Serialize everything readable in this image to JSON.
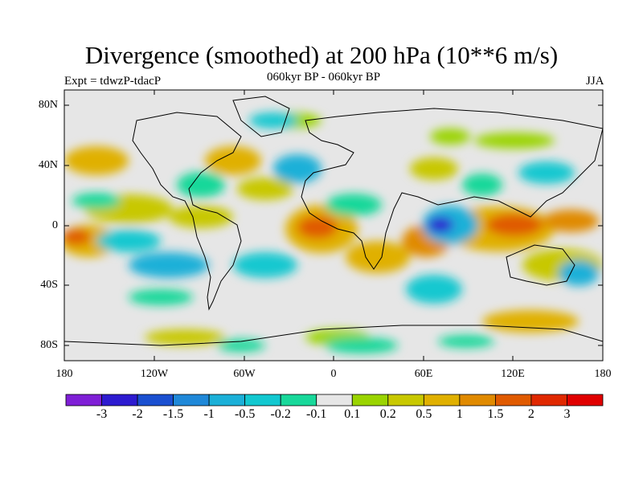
{
  "title": "Divergence (smoothed) at 200 hPa (10**6 m/s)",
  "expt": "Expt = tdwzP-tdacP",
  "period": "060kyr BP - 060kyr BP",
  "season": "JJA",
  "lat_labels": [
    "80N",
    "40N",
    "0",
    "40S",
    "80S"
  ],
  "lon_labels": [
    "180",
    "120W",
    "60W",
    "0",
    "60E",
    "120E",
    "180"
  ],
  "colorbar": {
    "labels": [
      "-3",
      "-2",
      "-1.5",
      "-1",
      "-0.5",
      "-0.2",
      "-0.1",
      "0.1",
      "0.2",
      "0.5",
      "1",
      "1.5",
      "2",
      "3"
    ],
    "colors": [
      "#7f1fd6",
      "#2d1bd0",
      "#1a4fd0",
      "#1f88d8",
      "#1bb0d8",
      "#12c8d0",
      "#18d89a",
      "#e6e6e6",
      "#9ad400",
      "#c8c800",
      "#e0b000",
      "#e08a00",
      "#e05a00",
      "#e02800",
      "#e00000"
    ]
  },
  "map_colors": {
    "land": "#000000",
    "background": "#e6e6e6"
  }
}
